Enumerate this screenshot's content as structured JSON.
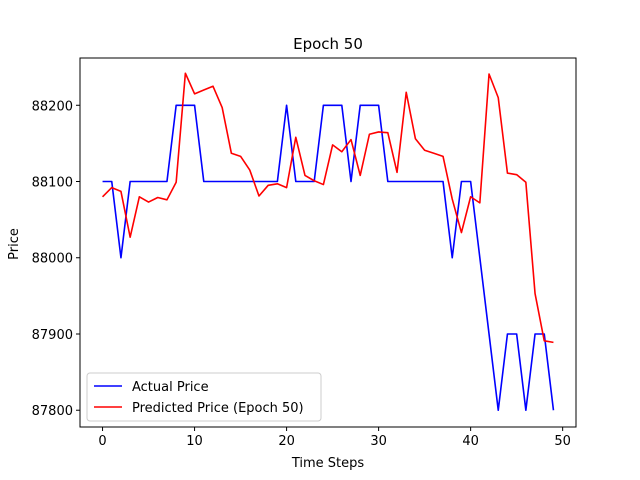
{
  "chart_data": {
    "type": "line",
    "title": "Epoch 50",
    "xlabel": "Time Steps",
    "ylabel": "Price",
    "xlim": [
      -2.45,
      51.45
    ],
    "ylim": [
      87778,
      88262
    ],
    "xticks": [
      0,
      10,
      20,
      30,
      40,
      50
    ],
    "yticks": [
      87800,
      87900,
      88000,
      88100,
      88200
    ],
    "grid": false,
    "legend_position": "lower-left",
    "series": [
      {
        "name": "Actual Price",
        "color": "#0000ff",
        "x": [
          0,
          1,
          2,
          3,
          4,
          5,
          6,
          7,
          8,
          9,
          10,
          11,
          12,
          13,
          14,
          15,
          16,
          17,
          18,
          19,
          20,
          21,
          22,
          23,
          24,
          25,
          26,
          27,
          28,
          29,
          30,
          31,
          32,
          33,
          34,
          35,
          36,
          37,
          38,
          39,
          40,
          41,
          42,
          43,
          44,
          45,
          46,
          47,
          48,
          49
        ],
        "values": [
          88100,
          88100,
          88000,
          88100,
          88100,
          88100,
          88100,
          88100,
          88200,
          88200,
          88200,
          88100,
          88100,
          88100,
          88100,
          88100,
          88100,
          88100,
          88100,
          88100,
          88200,
          88100,
          88100,
          88100,
          88200,
          88200,
          88200,
          88100,
          88200,
          88200,
          88200,
          88100,
          88100,
          88100,
          88100,
          88100,
          88100,
          88100,
          88000,
          88100,
          88100,
          88000,
          87900,
          87800,
          87900,
          87900,
          87800,
          87900,
          87900,
          87800
        ]
      },
      {
        "name": "Predicted Price (Epoch 50)",
        "color": "#ff0000",
        "x": [
          0,
          1,
          2,
          3,
          4,
          5,
          6,
          7,
          8,
          9,
          10,
          11,
          12,
          13,
          14,
          15,
          16,
          17,
          18,
          19,
          20,
          21,
          22,
          23,
          24,
          25,
          26,
          27,
          28,
          29,
          30,
          31,
          32,
          33,
          34,
          35,
          36,
          37,
          38,
          39,
          40,
          41,
          42,
          43,
          44,
          45,
          46,
          47,
          48,
          49
        ],
        "values": [
          88080,
          88092,
          88087,
          88027,
          88080,
          88073,
          88079,
          88076,
          88099,
          88242,
          88215,
          88220,
          88225,
          88197,
          88137,
          88133,
          88115,
          88081,
          88095,
          88097,
          88092,
          88158,
          88108,
          88101,
          88096,
          88148,
          88139,
          88155,
          88108,
          88162,
          88165,
          88164,
          88112,
          88217,
          88156,
          88141,
          88137,
          88133,
          88077,
          88033,
          88080,
          88072,
          88241,
          88210,
          88111,
          88109,
          88099,
          87953,
          87891,
          87889
        ]
      }
    ]
  }
}
